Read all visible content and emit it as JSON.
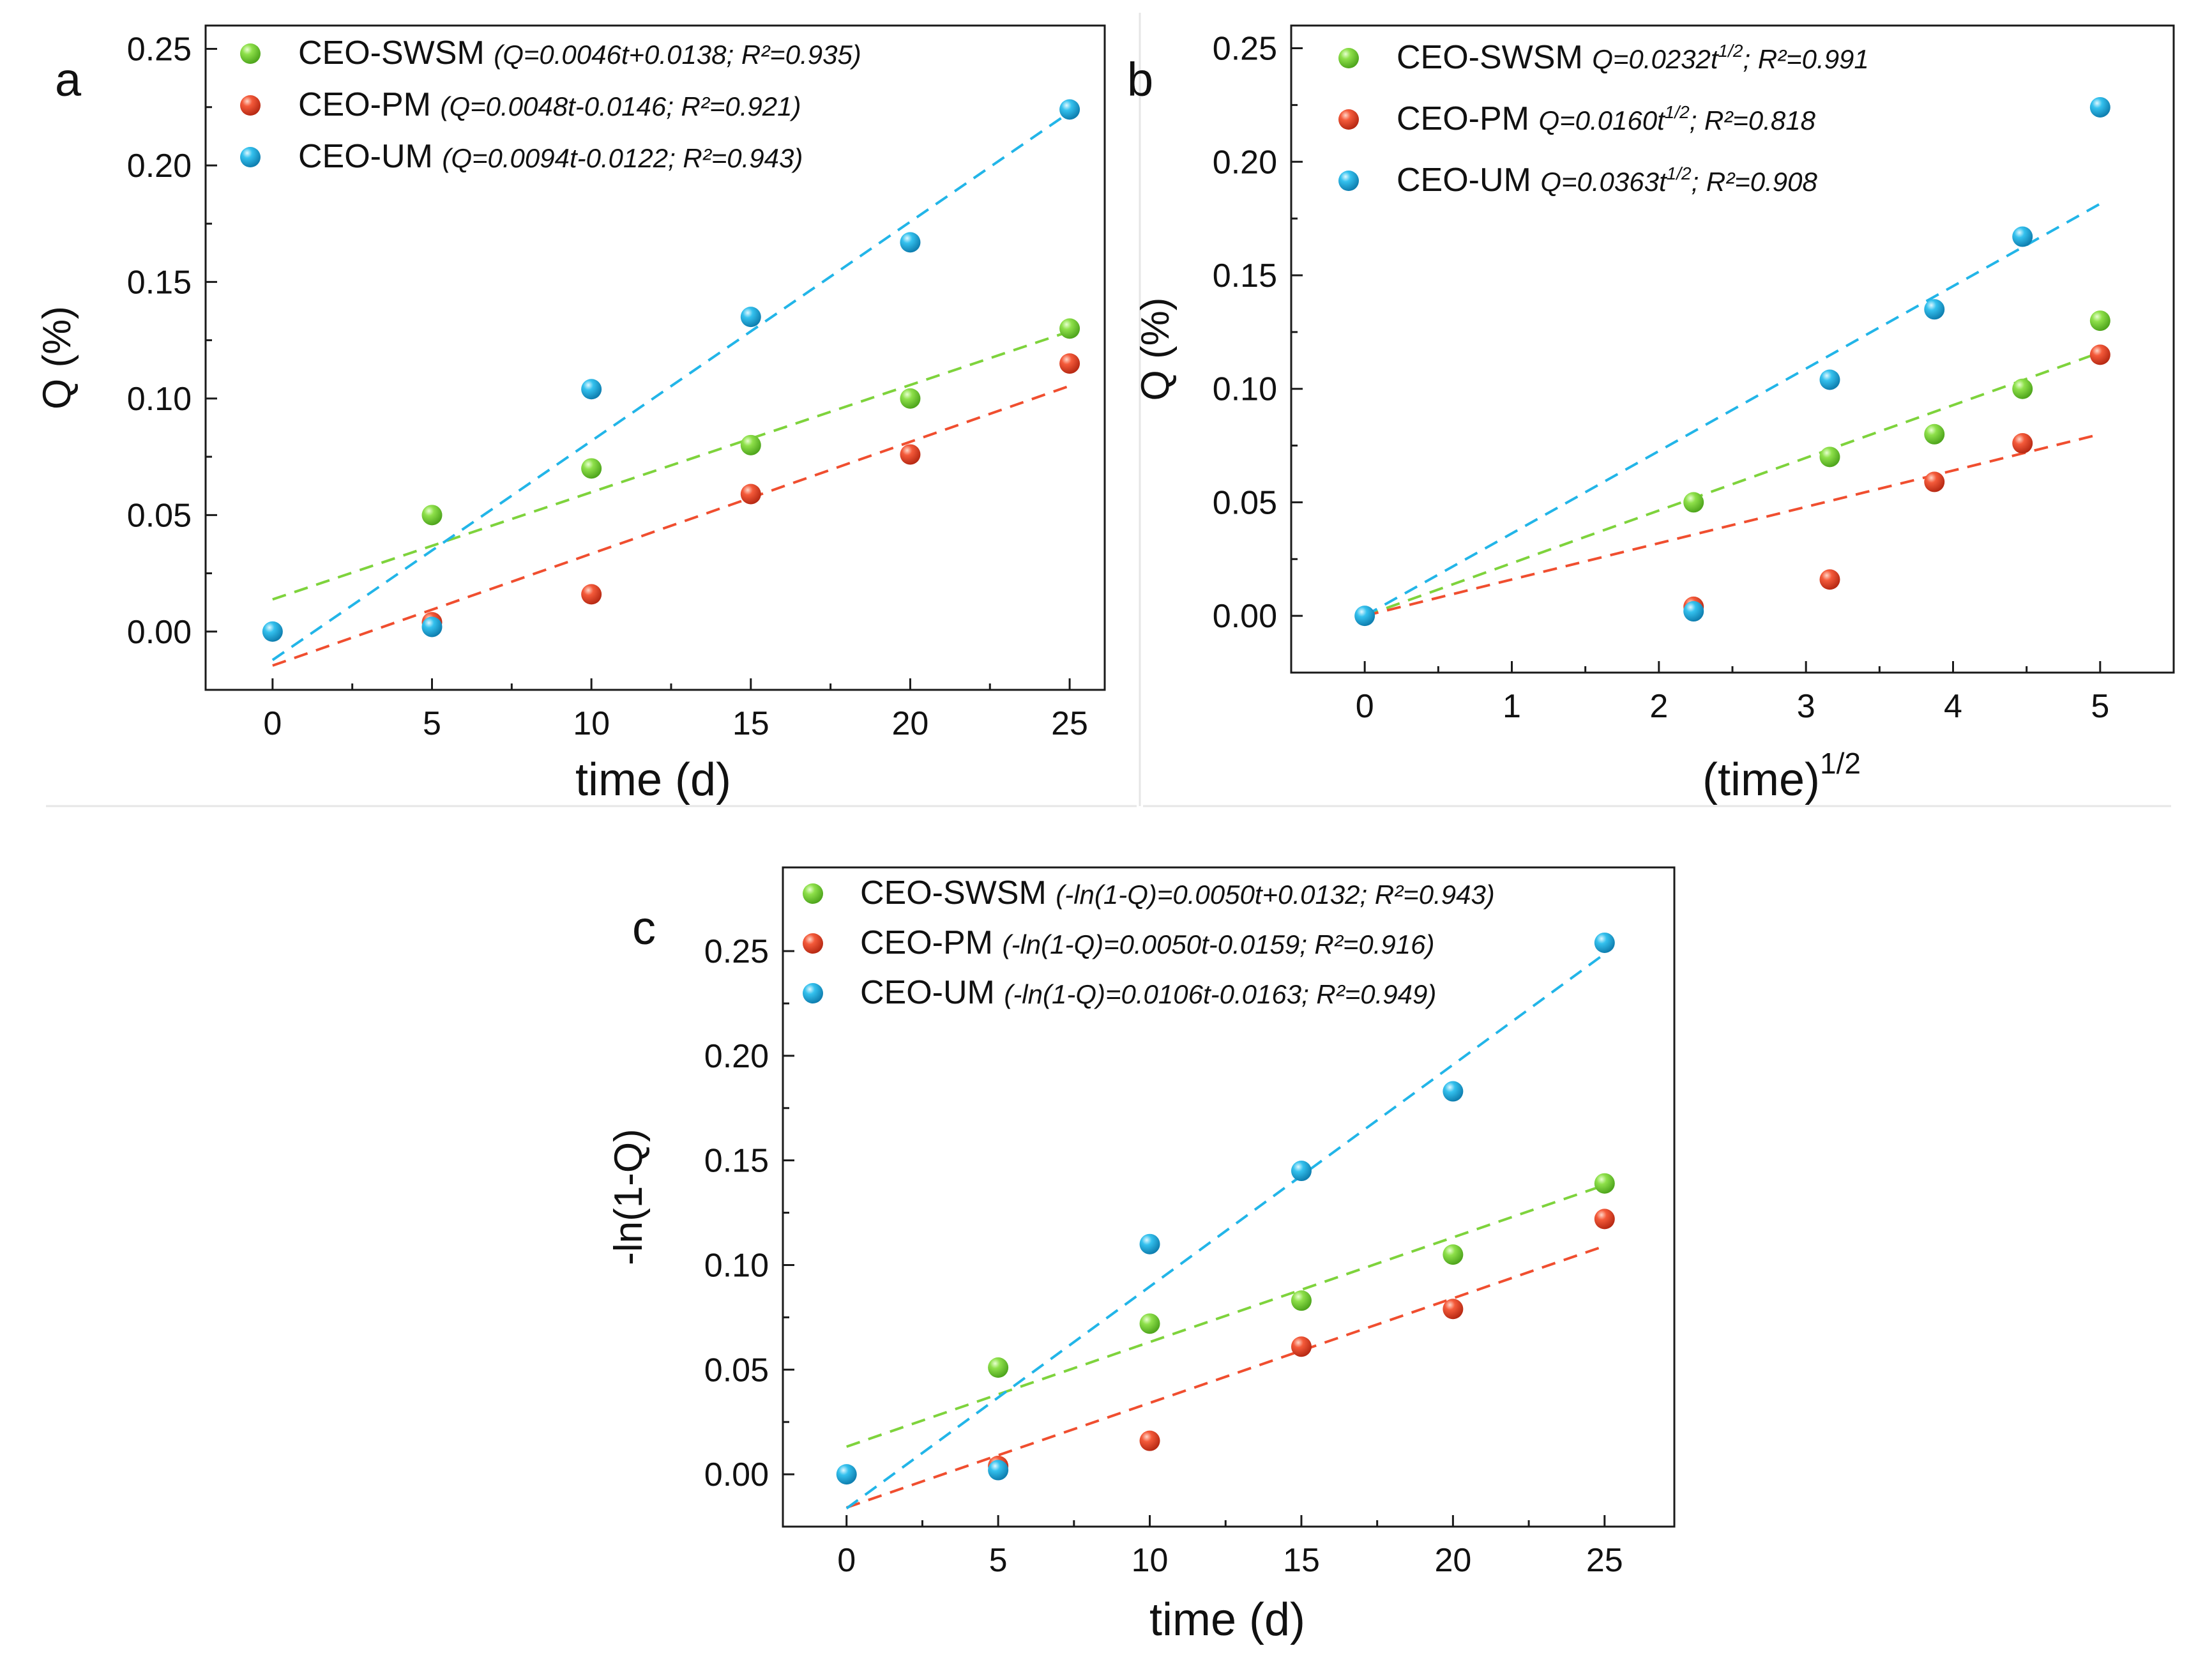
{
  "figure": {
    "panels": [
      {
        "label": "a",
        "xlabel": "time (d)",
        "ylabel": "Q (%)",
        "legend": [
          {
            "name": "CEO-SWSM",
            "equation": "(Q=0.0046t+0.0138; R²=0.935)"
          },
          {
            "name": "CEO-PM",
            "equation": "(Q=0.0048t-0.0146; R²=0.921)"
          },
          {
            "name": "CEO-UM",
            "equation": "(Q=0.0094t-0.0122; R²=0.943)"
          }
        ]
      },
      {
        "label": "b",
        "xlabel": "(time)",
        "xlabel_sup": "1/2",
        "ylabel": "Q (%)",
        "legend": [
          {
            "name": "CEO-SWSM",
            "equation": "Q=0.0232t^{1/2}; R²=0.991"
          },
          {
            "name": "CEO-PM",
            "equation": "Q=0.0160t^{1/2}; R²=0.818"
          },
          {
            "name": "CEO-UM",
            "equation": "Q=0.0363t^{1/2}; R²=0.908"
          }
        ]
      },
      {
        "label": "c",
        "xlabel": "time (d)",
        "ylabel": "-ln(1-Q)",
        "legend": [
          {
            "name": "CEO-SWSM",
            "equation": "(-ln(1-Q)=0.0050t+0.0132; R²=0.943)"
          },
          {
            "name": "CEO-PM",
            "equation": "(-ln(1-Q)=0.0050t-0.0159; R²=0.916)"
          },
          {
            "name": "CEO-UM",
            "equation": "(-ln(1-Q)=0.0106t-0.0163; R²=0.949)"
          }
        ]
      }
    ]
  },
  "chart_data": [
    {
      "type": "scatter",
      "title": "a",
      "xlabel": "time (d)",
      "ylabel": "Q (%)",
      "xlim": [
        -2.1,
        26.1
      ],
      "ylim": [
        -0.025,
        0.26
      ],
      "xticks": [
        0,
        5,
        10,
        15,
        20,
        25
      ],
      "yticks": [
        0.0,
        0.05,
        0.1,
        0.15,
        0.2,
        0.25
      ],
      "grid": false,
      "legend_position": "top-left",
      "series": [
        {
          "name": "CEO-SWSM",
          "color": "#7ed33c",
          "x": [
            5,
            10,
            15,
            20,
            25
          ],
          "y": [
            0.05,
            0.07,
            0.08,
            0.1,
            0.13
          ],
          "fit": {
            "slope": 0.0046,
            "intercept": 0.0138,
            "x_range": [
              0,
              25
            ]
          }
        },
        {
          "name": "CEO-PM",
          "color": "#f04e2f",
          "x": [
            5,
            10,
            15,
            20,
            25
          ],
          "y": [
            0.004,
            0.016,
            0.059,
            0.076,
            0.115
          ],
          "fit": {
            "slope": 0.0048,
            "intercept": -0.0146,
            "x_range": [
              0,
              25
            ]
          }
        },
        {
          "name": "CEO-UM",
          "color": "#22b5e8",
          "x": [
            0,
            5,
            10,
            15,
            20,
            25
          ],
          "y": [
            0.0,
            0.002,
            0.104,
            0.135,
            0.167,
            0.224
          ],
          "fit": {
            "slope": 0.0094,
            "intercept": -0.0122,
            "x_range": [
              0,
              25
            ]
          }
        }
      ]
    },
    {
      "type": "scatter",
      "title": "b",
      "xlabel": "(time)^1/2",
      "ylabel": "Q (%)",
      "xlim": [
        -0.5,
        5.5
      ],
      "ylim": [
        -0.025,
        0.26
      ],
      "xticks": [
        0,
        1,
        2,
        3,
        4,
        5
      ],
      "yticks": [
        0.0,
        0.05,
        0.1,
        0.15,
        0.2,
        0.25
      ],
      "grid": false,
      "legend_position": "top-left",
      "series": [
        {
          "name": "CEO-SWSM",
          "color": "#7ed33c",
          "x": [
            2.236,
            3.162,
            3.873,
            4.472,
            5.0
          ],
          "y": [
            0.05,
            0.07,
            0.08,
            0.1,
            0.13
          ],
          "fit": {
            "slope": 0.0232,
            "intercept": 0,
            "x_range": [
              0,
              5
            ]
          }
        },
        {
          "name": "CEO-PM",
          "color": "#f04e2f",
          "x": [
            2.236,
            3.162,
            3.873,
            4.472,
            5.0
          ],
          "y": [
            0.004,
            0.016,
            0.059,
            0.076,
            0.115
          ],
          "fit": {
            "slope": 0.016,
            "intercept": 0,
            "x_range": [
              0,
              5
            ]
          }
        },
        {
          "name": "CEO-UM",
          "color": "#22b5e8",
          "x": [
            0,
            2.236,
            3.162,
            3.873,
            4.472,
            5.0
          ],
          "y": [
            0.0,
            0.002,
            0.104,
            0.135,
            0.167,
            0.224
          ],
          "fit": {
            "slope": 0.0363,
            "intercept": 0,
            "x_range": [
              0,
              5
            ]
          }
        }
      ]
    },
    {
      "type": "scatter",
      "title": "c",
      "xlabel": "time (d)",
      "ylabel": "-ln(1-Q)",
      "xlim": [
        -2.1,
        27.3
      ],
      "ylim": [
        -0.025,
        0.29
      ],
      "xticks": [
        0,
        5,
        10,
        15,
        20,
        25
      ],
      "yticks": [
        0.0,
        0.05,
        0.1,
        0.15,
        0.2,
        0.25
      ],
      "grid": false,
      "legend_position": "top-left",
      "series": [
        {
          "name": "CEO-SWSM",
          "color": "#7ed33c",
          "x": [
            5,
            10,
            15,
            20,
            25
          ],
          "y": [
            0.051,
            0.072,
            0.083,
            0.105,
            0.139
          ],
          "fit": {
            "slope": 0.005,
            "intercept": 0.0132,
            "x_range": [
              0,
              25
            ]
          }
        },
        {
          "name": "CEO-PM",
          "color": "#f04e2f",
          "x": [
            5,
            10,
            15,
            20,
            25
          ],
          "y": [
            0.004,
            0.016,
            0.061,
            0.079,
            0.122
          ],
          "fit": {
            "slope": 0.005,
            "intercept": -0.0159,
            "x_range": [
              0,
              25
            ]
          }
        },
        {
          "name": "CEO-UM",
          "color": "#22b5e8",
          "x": [
            0,
            5,
            10,
            15,
            20,
            25
          ],
          "y": [
            0.0,
            0.002,
            0.11,
            0.145,
            0.183,
            0.254
          ],
          "fit": {
            "slope": 0.0106,
            "intercept": -0.0163,
            "x_range": [
              0,
              25
            ]
          }
        }
      ]
    }
  ]
}
